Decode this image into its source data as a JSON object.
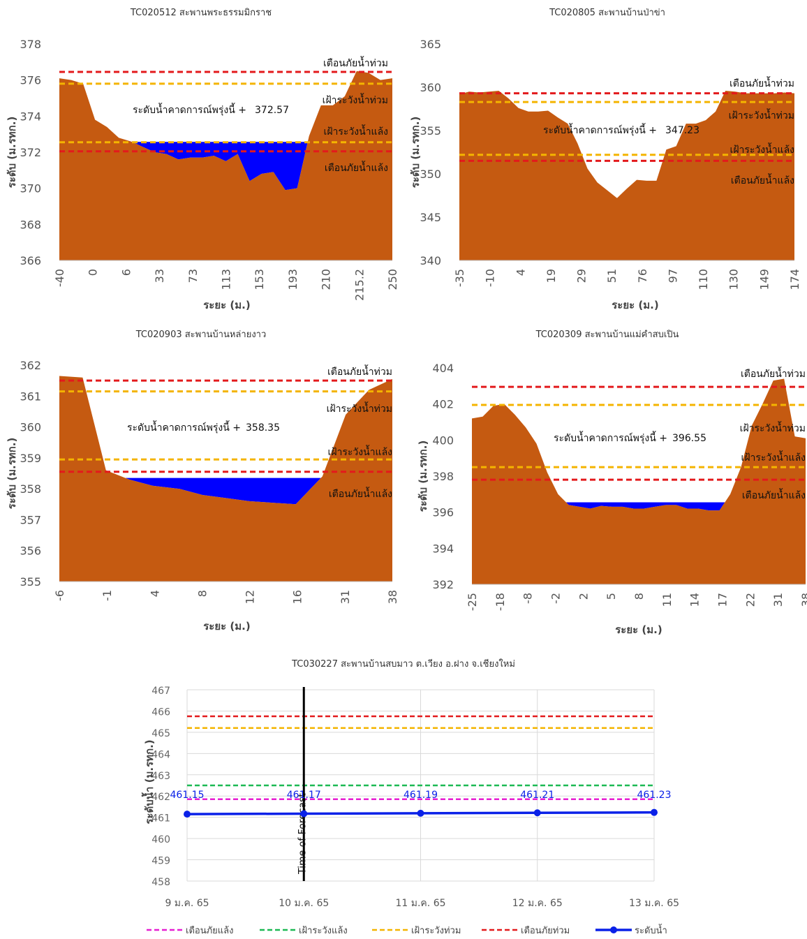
{
  "colors": {
    "terrain": "#C55A11",
    "water": "#0000FF",
    "flood_warning": "#E31A1C",
    "flood_watch": "#F4B400",
    "drought_watch": "#1DB954",
    "drought_warning": "#E61ED2",
    "level_line": "#0A21E8",
    "grid": "#D9D9D9",
    "forecast_line": "#000000"
  },
  "chart_data": [
    {
      "type": "area",
      "title": "TC020512 สะพานพระธรรมมิกราช",
      "xlabel": "ระยะ (ม.)",
      "ylabel": "ระดับ (ม.รทก.)",
      "ylim": [
        366,
        378
      ],
      "yticks": [
        366,
        368,
        370,
        372,
        374,
        376,
        378
      ],
      "x_tick_labels": [
        "-40",
        "0",
        "6",
        "33",
        "73",
        "113",
        "153",
        "193",
        "210",
        "215.2",
        "250"
      ],
      "profile": [
        376.1,
        376.0,
        375.8,
        373.8,
        373.4,
        372.8,
        372.6,
        372.3,
        372.0,
        371.9,
        371.6,
        371.7,
        371.7,
        371.8,
        371.5,
        371.9,
        370.4,
        370.8,
        370.9,
        369.9,
        370.0,
        372.9,
        374.6,
        374.6,
        375.1,
        376.5,
        376.4,
        376.0,
        376.1
      ],
      "water_level": 372.57,
      "forecast_label": "ระดับน้ำคาดการณ์พรุ่งนี้ +",
      "forecast_value": "372.57",
      "thresholds": [
        {
          "label": "เตือนภัยน้ำท่วม",
          "value": 376.45,
          "kind": "flood_warning"
        },
        {
          "label": "เฝ้าระวังน้ำท่วม",
          "value": 375.8,
          "kind": "flood_watch"
        },
        {
          "label": "เฝ้าระวังน้ำแล้ง",
          "value": 372.55,
          "kind": "flood_watch"
        },
        {
          "label": "เตือนภัยน้ำแล้ง",
          "value": 372.05,
          "kind": "flood_warning"
        }
      ]
    },
    {
      "type": "area",
      "title": "TC020805 สะพานบ้านป่าข่า",
      "xlabel": "ระยะ (ม.)",
      "ylabel": "ระดับ (ม.รทก.)",
      "ylim": [
        340,
        365
      ],
      "yticks": [
        340,
        345,
        350,
        355,
        360,
        365
      ],
      "x_tick_labels": [
        "-35",
        "-10",
        "4",
        "19",
        "29",
        "51",
        "76",
        "97",
        "110",
        "130",
        "149",
        "174"
      ],
      "profile": [
        359.2,
        359.5,
        359.4,
        359.5,
        359.6,
        358.7,
        357.6,
        357.2,
        357.2,
        357.3,
        356.5,
        355.8,
        353.5,
        350.6,
        349.0,
        348.1,
        347.2,
        348.3,
        349.3,
        349.2,
        349.2,
        352.8,
        353.2,
        355.8,
        355.8,
        356.2,
        357.2,
        359.6,
        359.5,
        359.3,
        359.3,
        359.3,
        359.3,
        359.4,
        359.3
      ],
      "water_level": 347.23,
      "forecast_label": "ระดับน้ำคาดการณ์พรุ่งนี้ +",
      "forecast_value": "347.23",
      "thresholds": [
        {
          "label": "เตือนภัยน้ำท่วม",
          "value": 359.3,
          "kind": "flood_warning"
        },
        {
          "label": "เฝ้าระวังน้ำท่วม",
          "value": 358.3,
          "kind": "flood_watch"
        },
        {
          "label": "เฝ้าระวังน้ำแล้ง",
          "value": 352.2,
          "kind": "flood_watch"
        },
        {
          "label": "เตือนภัยน้ำแล้ง",
          "value": 351.5,
          "kind": "flood_warning"
        }
      ]
    },
    {
      "type": "area",
      "title": "TC020903 สะพานบ้านหล่ายงาว",
      "xlabel": "ระยะ (ม.)",
      "ylabel": "ระดับ (ม.รทก.)",
      "ylim": [
        355,
        362
      ],
      "yticks": [
        355,
        356,
        357,
        358,
        359,
        360,
        361,
        362
      ],
      "x_tick_labels": [
        "-6",
        "-1",
        "4",
        "8",
        "12",
        "16",
        "31",
        "38"
      ],
      "profile": [
        361.65,
        361.6,
        358.6,
        358.3,
        358.1,
        358.0,
        357.8,
        357.7,
        357.6,
        357.55,
        357.5,
        358.4,
        360.4,
        361.2,
        361.55
      ],
      "profile_x": [
        0,
        0.07,
        0.14,
        0.21,
        0.28,
        0.36,
        0.43,
        0.5,
        0.57,
        0.64,
        0.71,
        0.79,
        0.86,
        0.93,
        1.0
      ],
      "water_level": 358.35,
      "forecast_label": "ระดับน้ำคาดการณ์พรุ่งนี้ +",
      "forecast_value": "358.35",
      "thresholds": [
        {
          "label": "เตือนภัยน้ำท่วม",
          "value": 361.5,
          "kind": "flood_warning"
        },
        {
          "label": "เฝ้าระวังน้ำท่วม",
          "value": 361.15,
          "kind": "flood_watch"
        },
        {
          "label": "เฝ้าระวังน้ำแล้ง",
          "value": 358.95,
          "kind": "flood_watch"
        },
        {
          "label": "เตือนภัยน้ำแล้ง",
          "value": 358.55,
          "kind": "flood_warning"
        }
      ]
    },
    {
      "type": "area",
      "title": "TC020309 สะพานบ้านแม่คำสบเปิน",
      "xlabel": "ระยะ (ม.)",
      "ylabel": "ระดับ (ม.รทก.)",
      "ylim": [
        392,
        404
      ],
      "yticks": [
        392,
        394,
        396,
        398,
        400,
        402,
        404
      ],
      "x_tick_labels": [
        "-25",
        "-18",
        "-8",
        "-2",
        "2",
        "5",
        "8",
        "11",
        "14",
        "17",
        "22",
        "31",
        "38"
      ],
      "profile": [
        401.2,
        401.3,
        401.9,
        402.0,
        401.4,
        400.7,
        399.8,
        398.2,
        397.0,
        396.4,
        396.3,
        396.2,
        396.35,
        396.3,
        396.3,
        396.2,
        396.2,
        396.3,
        396.4,
        396.4,
        396.2,
        396.2,
        396.1,
        396.1,
        397.0,
        398.5,
        400.8,
        402.0,
        403.3,
        403.4,
        400.2,
        400.1
      ],
      "water_level": 396.55,
      "forecast_label": "ระดับน้ำคาดการณ์พรุ่งนี้ +",
      "forecast_value": "396.55",
      "thresholds": [
        {
          "label": "เตือนภัยน้ำท่วม",
          "value": 402.95,
          "kind": "flood_warning"
        },
        {
          "label": "เฝ้าระวังน้ำท่วม",
          "value": 401.95,
          "kind": "flood_watch"
        },
        {
          "label": "เฝ้าระวังน้ำแล้ง",
          "value": 398.5,
          "kind": "flood_watch"
        },
        {
          "label": "เตือนภัยน้ำแล้ง",
          "value": 397.8,
          "kind": "flood_warning"
        }
      ]
    },
    {
      "type": "line",
      "title": "TC030227 สะพานบ้านสบมาว ต.เวียง อ.ฝาง จ.เชียงใหม่",
      "xlabel": "",
      "ylabel": "ระดับน้ำ (ม.รทก.)",
      "ylim": [
        458,
        467
      ],
      "yticks": [
        458,
        459,
        460,
        461,
        462,
        463,
        464,
        465,
        466,
        467
      ],
      "categories": [
        "9 ม.ค. 65",
        "10 ม.ค. 65",
        "11 ม.ค. 65",
        "12 ม.ค. 65",
        "13 ม.ค. 65"
      ],
      "series": [
        {
          "name": "ระดับน้ำ",
          "values": [
            461.15,
            461.17,
            461.19,
            461.21,
            461.23
          ],
          "kind": "level_line"
        },
        {
          "name": "เตือนภัยแล้ง",
          "values": [
            461.85,
            461.85,
            461.85,
            461.85,
            461.85
          ],
          "kind": "drought_warning"
        },
        {
          "name": "เฝ้าระวังแล้ง",
          "values": [
            462.5,
            462.5,
            462.5,
            462.5,
            462.5
          ],
          "kind": "drought_watch"
        },
        {
          "name": "เฝ้าระวังท่วม",
          "values": [
            465.2,
            465.2,
            465.2,
            465.2,
            465.2
          ],
          "kind": "flood_watch"
        },
        {
          "name": "เตือนภัยท่วม",
          "values": [
            465.75,
            465.75,
            465.75,
            465.75,
            465.75
          ],
          "kind": "flood_warning"
        }
      ],
      "data_labels": [
        "461.15",
        "461.17",
        "461.19",
        "461.21",
        "461.23"
      ],
      "forecast_marker": {
        "label": "Time of Forecast",
        "category": "10 ม.ค. 65"
      },
      "legend": {
        "position": "bottom",
        "items": [
          {
            "label": "เตือนภัยแล้ง",
            "kind": "drought_warning",
            "marker": false
          },
          {
            "label": "เฝ้าระวังแล้ง",
            "kind": "drought_watch",
            "marker": false
          },
          {
            "label": "เฝ้าระวังท่วม",
            "kind": "flood_watch",
            "marker": false
          },
          {
            "label": "เตือนภัยท่วม",
            "kind": "flood_warning",
            "marker": false
          },
          {
            "label": "ระดับน้ำ",
            "kind": "level_line",
            "marker": true
          }
        ]
      },
      "grid": true
    }
  ]
}
